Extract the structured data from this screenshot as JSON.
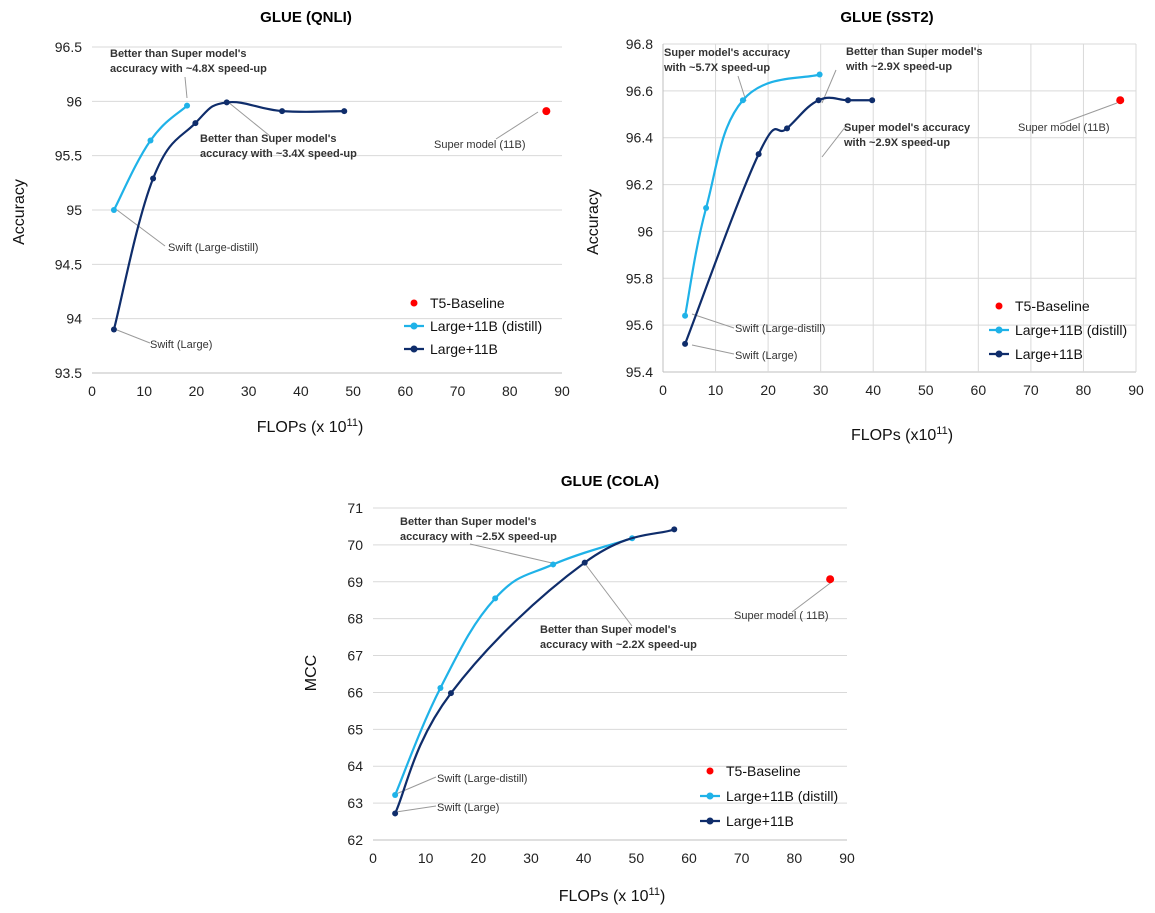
{
  "chart_data": [
    {
      "type": "line",
      "title": "GLUE (QNLI)",
      "xlabel": "FLOPs (x 10",
      "xlabel_sup": "11",
      "xlabel_close": ")",
      "ylabel": "Accuracy",
      "xlim": [
        0,
        90
      ],
      "ylim": [
        93.5,
        96.5
      ],
      "xticks": [
        "0",
        "10",
        "20",
        "30",
        "40",
        "50",
        "60",
        "70",
        "80",
        "90"
      ],
      "yticks": [
        "93.5",
        "94",
        "94.5",
        "95",
        "95.5",
        "96",
        "96.5"
      ],
      "grid": "horizontal",
      "legend_position": "bottom-right",
      "series": [
        {
          "name": "T5-Baseline",
          "color": "#ff0000",
          "kind": "point",
          "x": [
            87
          ],
          "y": [
            95.91
          ]
        },
        {
          "name": "Large+11B (distill)",
          "color": "#1fb2e8",
          "kind": "line",
          "x": [
            4.2,
            11.2,
            18.2
          ],
          "y": [
            95.0,
            95.64,
            95.96
          ]
        },
        {
          "name": "Large+11B",
          "color": "#0f2d6b",
          "kind": "line",
          "x": [
            4.2,
            11.7,
            19.8,
            25.8,
            36.4,
            48.3
          ],
          "y": [
            93.9,
            95.29,
            95.8,
            95.99,
            95.91,
            95.91
          ]
        }
      ],
      "annotations": [
        {
          "lines": [
            "Better than Super model's",
            "accuracy with ~4.8X speed-up"
          ],
          "bold": true
        },
        {
          "lines": [
            "Better than Super model's",
            "accuracy with ~3.4X speed-up"
          ],
          "bold": true
        },
        {
          "lines": [
            "Super model (11B)"
          ],
          "bold": false
        },
        {
          "lines": [
            "Swift (Large-distill)"
          ],
          "bold": false
        },
        {
          "lines": [
            "Swift (Large)"
          ],
          "bold": false
        }
      ]
    },
    {
      "type": "line",
      "title": "GLUE (SST2)",
      "xlabel": "FLOPs (x10",
      "xlabel_sup": "11",
      "xlabel_close": ")",
      "ylabel": "Accuracy",
      "xlim": [
        0,
        90
      ],
      "ylim": [
        95.4,
        96.8
      ],
      "xticks": [
        "0",
        "10",
        "20",
        "30",
        "40",
        "50",
        "60",
        "70",
        "80",
        "90"
      ],
      "yticks": [
        "95.4",
        "95.6",
        "95.8",
        "96",
        "96.2",
        "96.4",
        "96.6",
        "96.8"
      ],
      "grid": "both",
      "legend_position": "bottom-right",
      "series": [
        {
          "name": "T5-Baseline",
          "color": "#ff0000",
          "kind": "point",
          "x": [
            87
          ],
          "y": [
            96.56
          ]
        },
        {
          "name": "Large+11B (distill)",
          "color": "#1fb2e8",
          "kind": "line",
          "x": [
            4.2,
            8.2,
            15.2,
            29.8
          ],
          "y": [
            95.64,
            96.1,
            96.56,
            96.67
          ]
        },
        {
          "name": "Large+11B",
          "color": "#0f2d6b",
          "kind": "line",
          "x": [
            4.2,
            18.2,
            23.6,
            29.6,
            35.2,
            39.8
          ],
          "y": [
            95.52,
            96.33,
            96.44,
            96.56,
            96.56,
            96.56
          ]
        }
      ],
      "annotations": [
        {
          "lines": [
            "Super model's accuracy",
            "with ~5.7X speed-up"
          ],
          "bold": true
        },
        {
          "lines": [
            "Better than Super model's",
            "with ~2.9X speed-up"
          ],
          "bold": true
        },
        {
          "lines": [
            "Super model's accuracy",
            "with ~2.9X speed-up"
          ],
          "bold": true
        },
        {
          "lines": [
            "Super model (11B)"
          ],
          "bold": false
        },
        {
          "lines": [
            "Swift (Large-distill)"
          ],
          "bold": false
        },
        {
          "lines": [
            "Swift (Large)"
          ],
          "bold": false
        }
      ]
    },
    {
      "type": "line",
      "title": "GLUE (COLA)",
      "xlabel": "FLOPs (x 10",
      "xlabel_sup": "11",
      "xlabel_close": ")",
      "ylabel": "MCC",
      "xlim": [
        0,
        90
      ],
      "ylim": [
        62,
        71
      ],
      "xticks": [
        "0",
        "10",
        "20",
        "30",
        "40",
        "50",
        "60",
        "70",
        "80",
        "90"
      ],
      "yticks": [
        "62",
        "63",
        "64",
        "65",
        "66",
        "67",
        "68",
        "69",
        "70",
        "71"
      ],
      "grid": "horizontal",
      "legend_position": "bottom-right",
      "series": [
        {
          "name": "T5-Baseline",
          "color": "#ff0000",
          "kind": "point",
          "x": [
            86.8
          ],
          "y": [
            69.07
          ]
        },
        {
          "name": "Large+11B (distill)",
          "color": "#1fb2e8",
          "kind": "line",
          "x": [
            4.2,
            12.8,
            23.2,
            34.2,
            49.2
          ],
          "y": [
            63.22,
            66.12,
            68.55,
            69.47,
            70.18
          ]
        },
        {
          "name": "Large+11B",
          "color": "#0f2d6b",
          "kind": "line",
          "x": [
            4.2,
            14.8,
            40.2,
            57.2
          ],
          "y": [
            62.72,
            65.98,
            69.52,
            70.42
          ]
        }
      ],
      "annotations": [
        {
          "lines": [
            "Better than Super model's",
            "accuracy with ~2.5X speed-up"
          ],
          "bold": true
        },
        {
          "lines": [
            "Better than Super model's",
            "accuracy with ~2.2X speed-up"
          ],
          "bold": true
        },
        {
          "lines": [
            "Super model ( 11B)"
          ],
          "bold": false
        },
        {
          "lines": [
            "Swift (Large-distill)"
          ],
          "bold": false
        },
        {
          "lines": [
            "Swift (Large)"
          ],
          "bold": false
        }
      ]
    }
  ]
}
